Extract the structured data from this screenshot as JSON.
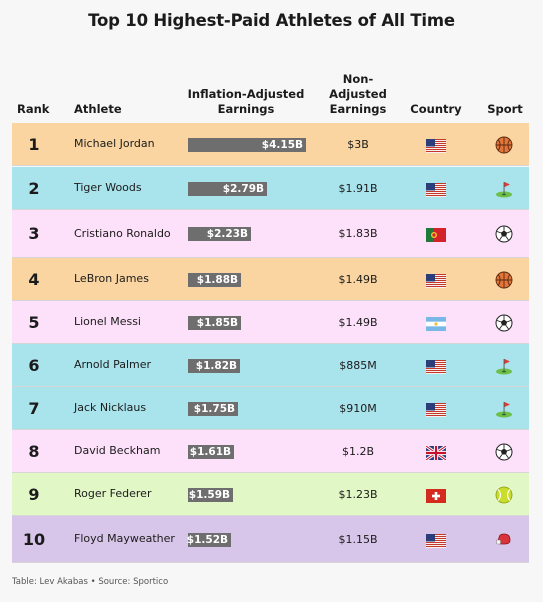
{
  "title": "Top 10 Highest-Paid Athletes of All Time",
  "headers": {
    "rank": "Rank",
    "athlete": "Athlete",
    "inflation_line1": "Inflation-Adjusted",
    "inflation_line2": "Earnings",
    "non_line1": "Non-",
    "non_line2": "Adjusted",
    "non_line3": "Earnings",
    "country": "Country",
    "sport": "Sport"
  },
  "footer": "Table: Lev Akabas • Source: Sportico",
  "colors": {
    "basketball_row": "#fad5a1",
    "golf_row": "#a9e3ec",
    "soccer_row": "#fde1fa",
    "tennis_row": "#e2f7c6",
    "boxing_row": "#d8c6ea",
    "bar": "#6e6e6e"
  },
  "chart_data": {
    "type": "table",
    "title": "Top 10 Highest-Paid Athletes of All Time",
    "columns": [
      "Rank",
      "Athlete",
      "Inflation-Adjusted Earnings",
      "Non-Adjusted Earnings",
      "Country",
      "Sport"
    ],
    "rows": [
      {
        "rank": "1",
        "athlete": "Michael Jordan",
        "inflation_adjusted": 4.15,
        "inflation_label": "$4.15B",
        "non_adjusted": "$3B",
        "country": "United States",
        "country_flag": "us-flag-icon",
        "sport": "basketball",
        "sport_icon": "basketball-icon"
      },
      {
        "rank": "2",
        "athlete": "Tiger Woods",
        "inflation_adjusted": 2.79,
        "inflation_label": "$2.79B",
        "non_adjusted": "$1.91B",
        "country": "United States",
        "country_flag": "us-flag-icon",
        "sport": "golf",
        "sport_icon": "golf-flag-icon"
      },
      {
        "rank": "3",
        "athlete": "Cristiano Ronaldo",
        "inflation_adjusted": 2.23,
        "inflation_label": "$2.23B",
        "non_adjusted": "$1.83B",
        "country": "Portugal",
        "country_flag": "portugal-flag-icon",
        "sport": "soccer",
        "sport_icon": "soccer-ball-icon"
      },
      {
        "rank": "4",
        "athlete": "LeBron James",
        "inflation_adjusted": 1.88,
        "inflation_label": "$1.88B",
        "non_adjusted": "$1.49B",
        "country": "United States",
        "country_flag": "us-flag-icon",
        "sport": "basketball",
        "sport_icon": "basketball-icon"
      },
      {
        "rank": "5",
        "athlete": "Lionel Messi",
        "inflation_adjusted": 1.85,
        "inflation_label": "$1.85B",
        "non_adjusted": "$1.49B",
        "country": "Argentina",
        "country_flag": "argentina-flag-icon",
        "sport": "soccer",
        "sport_icon": "soccer-ball-icon"
      },
      {
        "rank": "6",
        "athlete": "Arnold Palmer",
        "inflation_adjusted": 1.82,
        "inflation_label": "$1.82B",
        "non_adjusted": "$885M",
        "country": "United States",
        "country_flag": "us-flag-icon",
        "sport": "golf",
        "sport_icon": "golf-flag-icon"
      },
      {
        "rank": "7",
        "athlete": "Jack Nicklaus",
        "inflation_adjusted": 1.75,
        "inflation_label": "$1.75B",
        "non_adjusted": "$910M",
        "country": "United States",
        "country_flag": "us-flag-icon",
        "sport": "golf",
        "sport_icon": "golf-flag-icon"
      },
      {
        "rank": "8",
        "athlete": "David Beckham",
        "inflation_adjusted": 1.61,
        "inflation_label": "$1.61B",
        "non_adjusted": "$1.2B",
        "country": "United Kingdom",
        "country_flag": "uk-flag-icon",
        "sport": "soccer",
        "sport_icon": "soccer-ball-icon"
      },
      {
        "rank": "9",
        "athlete": "Roger Federer",
        "inflation_adjusted": 1.59,
        "inflation_label": "$1.59B",
        "non_adjusted": "$1.23B",
        "country": "Switzerland",
        "country_flag": "switzerland-flag-icon",
        "sport": "tennis",
        "sport_icon": "tennis-ball-icon"
      },
      {
        "rank": "10",
        "athlete": "Floyd Mayweather",
        "inflation_adjusted": 1.52,
        "inflation_label": "$1.52B",
        "non_adjusted": "$1.15B",
        "country": "United States",
        "country_flag": "us-flag-icon",
        "sport": "boxing",
        "sport_icon": "boxing-glove-icon"
      }
    ]
  }
}
